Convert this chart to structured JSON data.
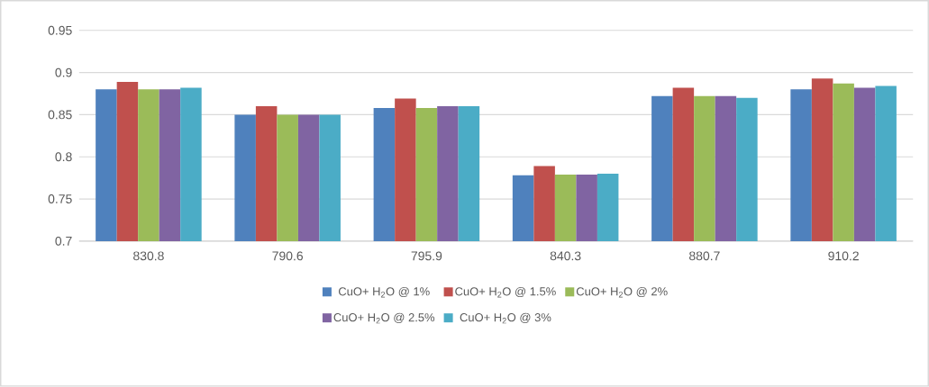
{
  "chart_data": {
    "type": "bar",
    "categories": [
      "830.8",
      "790.6",
      "795.9",
      "840.3",
      "880.7",
      "910.2"
    ],
    "series": [
      {
        "name": "CuO+ H$_{2}$O @ 1%",
        "color": "#4f81bd",
        "values": [
          0.88,
          0.85,
          0.858,
          0.778,
          0.872,
          0.88
        ]
      },
      {
        "name": "CuO+ H$_{2}$O @ 1.5%",
        "color": "#c0504d",
        "values": [
          0.889,
          0.86,
          0.869,
          0.789,
          0.882,
          0.893
        ]
      },
      {
        "name": "CuO+ H$_{2}$O @ 2%",
        "color": "#9bbb59",
        "values": [
          0.88,
          0.85,
          0.858,
          0.779,
          0.872,
          0.887
        ]
      },
      {
        "name": "CuO+ H$_{2}$O @ 2.5%",
        "color": "#8064a2",
        "values": [
          0.88,
          0.85,
          0.86,
          0.779,
          0.872,
          0.882
        ]
      },
      {
        "name": "CuO+ H$_{2}$O @ 3%",
        "color": "#4bacc6",
        "values": [
          0.882,
          0.85,
          0.86,
          0.78,
          0.87,
          0.884
        ]
      }
    ],
    "ylim": [
      0.7,
      0.95
    ],
    "yticks": [
      0.7,
      0.75,
      0.8,
      0.85,
      0.9,
      0.95
    ],
    "grid": "y",
    "legend": "bottom"
  }
}
